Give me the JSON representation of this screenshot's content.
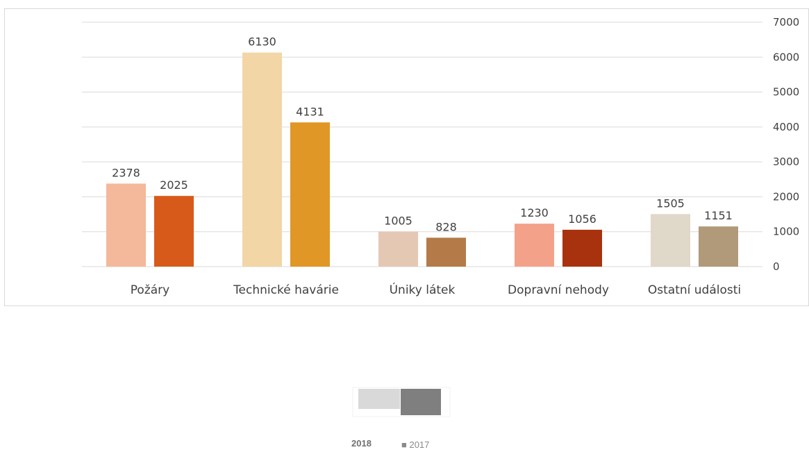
{
  "chart_data": {
    "type": "bar",
    "categories": [
      "Požáry",
      "Technické havárie",
      "Úniky látek",
      "Dopravní nehody",
      "Ostatní události"
    ],
    "series": [
      {
        "name": "2018",
        "values": [
          2378,
          6130,
          1005,
          1230,
          1505
        ]
      },
      {
        "name": "2017",
        "values": [
          2025,
          4131,
          828,
          1056,
          1151
        ]
      }
    ],
    "ylim": [
      0,
      7000
    ],
    "yticks": [
      0,
      1000,
      2000,
      3000,
      4000,
      5000,
      6000,
      7000
    ],
    "y_axis_position": "right",
    "grid": true,
    "legend_position": "bottom-center",
    "colors": {
      "2018": [
        "#f4b89a",
        "#f2d6a6",
        "#e4c8b4",
        "#f4a18a",
        "#e0d8c8"
      ],
      "2017": [
        "#d85a1a",
        "#e09726",
        "#b47a48",
        "#a8320e",
        "#b19a7a"
      ],
      "legend_2018": "#d9d9d9",
      "legend_2017": "#7f7f7f",
      "gridline": "#d9d9d9",
      "text": "#404040"
    }
  },
  "legend": {
    "label_2018": "2018",
    "label_2017": "■ 2017"
  }
}
